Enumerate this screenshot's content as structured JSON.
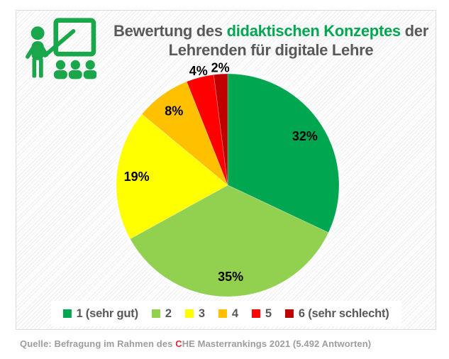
{
  "title": {
    "part1": "Bewertung des",
    "highlight": "didaktischen Konzeptes",
    "part2": "der",
    "line2": "Lehrenden für digitale Lehre",
    "text_color": "#595959",
    "highlight_color": "#00A650"
  },
  "icon": {
    "name": "teacher-presentation-icon",
    "color": "#1AA64A"
  },
  "chart_data": {
    "type": "pie",
    "title": "Bewertung des didaktischen Konzeptes der Lehrenden für digitale Lehre",
    "start_angle_deg": 0,
    "direction": "clockwise",
    "data_label_format": "percent",
    "legend_position": "bottom",
    "segments": [
      {
        "label": "1 (sehr gut)",
        "value": 32,
        "color": "#00A650"
      },
      {
        "label": "2",
        "value": 35,
        "color": "#92D050"
      },
      {
        "label": "3",
        "value": 19,
        "color": "#FFFF00"
      },
      {
        "label": "4",
        "value": 8,
        "color": "#FFC000"
      },
      {
        "label": "5",
        "value": 4,
        "color": "#FF0000"
      },
      {
        "label": "6 (sehr schlecht)",
        "value": 2,
        "color": "#C00000"
      }
    ]
  },
  "source": {
    "prefix": "Quelle: Befragung im Rahmen des ",
    "highlight": "C",
    "suffix": "HE Masterrankings 2021 (5.492 Antworten)",
    "text_color": "#9D9D9D",
    "highlight_color": "#E8282D"
  }
}
